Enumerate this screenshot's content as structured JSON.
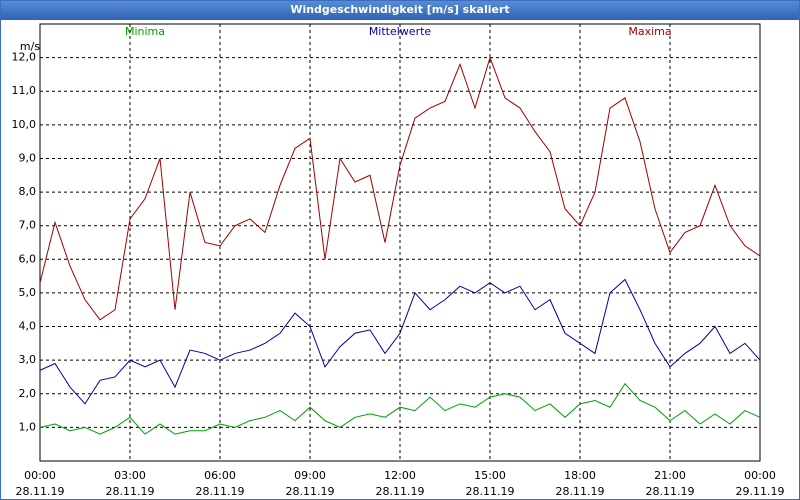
{
  "chart_data": {
    "type": "line",
    "title": "Windgeschwindigkeit [m/s] skaliert",
    "y_unit": "m/s",
    "x": [
      0,
      0.5,
      1,
      1.5,
      2,
      2.5,
      3,
      3.5,
      4,
      4.5,
      5,
      5.5,
      6,
      6.5,
      7,
      7.5,
      8,
      8.5,
      9,
      9.5,
      10,
      10.5,
      11,
      11.5,
      12,
      12.5,
      13,
      13.5,
      14,
      14.5,
      15,
      15.5,
      16,
      16.5,
      17,
      17.5,
      18,
      18.5,
      19,
      19.5,
      20,
      20.5,
      21,
      21.5,
      22,
      22.5,
      23,
      23.5,
      24
    ],
    "series": [
      {
        "name": "Minima",
        "color": "#00a000",
        "values": [
          1.0,
          1.1,
          0.9,
          1.0,
          0.8,
          1.0,
          1.3,
          0.8,
          1.1,
          0.8,
          0.9,
          0.9,
          1.1,
          1.0,
          1.2,
          1.3,
          1.5,
          1.2,
          1.6,
          1.2,
          1.0,
          1.3,
          1.4,
          1.3,
          1.6,
          1.5,
          1.9,
          1.5,
          1.7,
          1.6,
          1.9,
          2.0,
          1.9,
          1.5,
          1.7,
          1.3,
          1.7,
          1.8,
          1.6,
          2.3,
          1.8,
          1.6,
          1.2,
          1.5,
          1.1,
          1.4,
          1.1,
          1.5,
          1.3
        ]
      },
      {
        "name": "Mittelwerte",
        "color": "#0000a0",
        "values": [
          2.7,
          2.9,
          2.2,
          1.7,
          2.4,
          2.5,
          3.0,
          2.8,
          3.0,
          2.2,
          3.3,
          3.2,
          3.0,
          3.2,
          3.3,
          3.5,
          3.8,
          4.4,
          4.0,
          2.8,
          3.4,
          3.8,
          3.9,
          3.2,
          3.8,
          5.0,
          4.5,
          4.8,
          5.2,
          5.0,
          5.3,
          5.0,
          5.2,
          4.5,
          4.8,
          3.8,
          3.5,
          3.2,
          5.0,
          5.4,
          4.5,
          3.5,
          2.8,
          3.2,
          3.5,
          4.0,
          3.2,
          3.5,
          3.0
        ]
      },
      {
        "name": "Maxima",
        "color": "#a00000",
        "values": [
          5.3,
          7.1,
          5.8,
          4.8,
          4.2,
          4.5,
          7.2,
          7.8,
          9.0,
          4.5,
          8.0,
          6.5,
          6.4,
          7.0,
          7.2,
          6.8,
          8.2,
          9.3,
          9.6,
          6.0,
          9.0,
          8.3,
          8.5,
          6.5,
          8.8,
          10.2,
          10.5,
          10.7,
          11.8,
          10.5,
          12.0,
          10.8,
          10.5,
          9.8,
          9.2,
          7.5,
          7.0,
          8.0,
          10.5,
          10.8,
          9.5,
          7.5,
          6.2,
          6.8,
          7.0,
          8.2,
          7.0,
          6.4,
          6.1
        ]
      }
    ],
    "xlim": [
      0,
      24
    ],
    "xticks": [
      {
        "value": 0,
        "label": "00:00",
        "date": "28.11.19"
      },
      {
        "value": 3,
        "label": "03:00",
        "date": "28.11.19"
      },
      {
        "value": 6,
        "label": "06:00",
        "date": "28.11.19"
      },
      {
        "value": 9,
        "label": "09:00",
        "date": "28.11.19"
      },
      {
        "value": 12,
        "label": "12:00",
        "date": "28.11.19"
      },
      {
        "value": 15,
        "label": "15:00",
        "date": "28.11.19"
      },
      {
        "value": 18,
        "label": "18:00",
        "date": "28.11.19"
      },
      {
        "value": 21,
        "label": "21:00",
        "date": "28.11.19"
      },
      {
        "value": 24,
        "label": "00:00",
        "date": "29.11.19"
      }
    ],
    "ylim": [
      0,
      13
    ],
    "yticks": [
      {
        "value": 1,
        "label": "1,0"
      },
      {
        "value": 2,
        "label": "2,0"
      },
      {
        "value": 3,
        "label": "3,0"
      },
      {
        "value": 4,
        "label": "4,0"
      },
      {
        "value": 5,
        "label": "5,0"
      },
      {
        "value": 6,
        "label": "6,0"
      },
      {
        "value": 7,
        "label": "7,0"
      },
      {
        "value": 8,
        "label": "8,0"
      },
      {
        "value": 9,
        "label": "9,0"
      },
      {
        "value": 10,
        "label": "10,0"
      },
      {
        "value": 11,
        "label": "11,0"
      },
      {
        "value": 12,
        "label": "12,0"
      }
    ],
    "grid": true
  }
}
